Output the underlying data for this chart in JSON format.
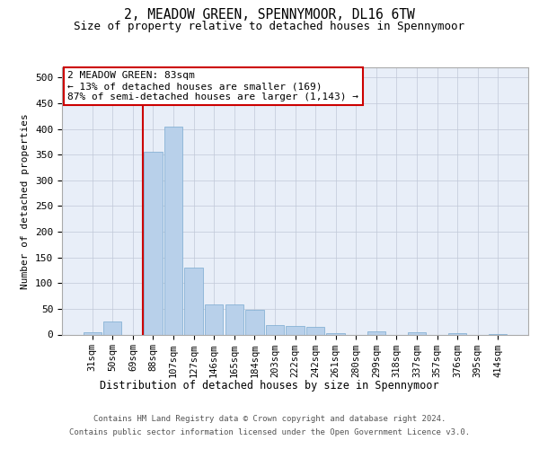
{
  "title": "2, MEADOW GREEN, SPENNYMOOR, DL16 6TW",
  "subtitle": "Size of property relative to detached houses in Spennymoor",
  "xlabel": "Distribution of detached houses by size in Spennymoor",
  "ylabel": "Number of detached properties",
  "bar_color": "#b8d0ea",
  "bar_edge_color": "#7aaacf",
  "background_color": "#e8eef8",
  "grid_color": "#c0c8d8",
  "categories": [
    "31sqm",
    "50sqm",
    "69sqm",
    "88sqm",
    "107sqm",
    "127sqm",
    "146sqm",
    "165sqm",
    "184sqm",
    "203sqm",
    "222sqm",
    "242sqm",
    "261sqm",
    "280sqm",
    "299sqm",
    "318sqm",
    "337sqm",
    "357sqm",
    "376sqm",
    "395sqm",
    "414sqm"
  ],
  "values": [
    5,
    25,
    0,
    355,
    405,
    130,
    58,
    58,
    48,
    18,
    16,
    14,
    2,
    0,
    6,
    0,
    5,
    0,
    2,
    0,
    1
  ],
  "ylim": [
    0,
    520
  ],
  "yticks": [
    0,
    50,
    100,
    150,
    200,
    250,
    300,
    350,
    400,
    450,
    500
  ],
  "vline_pos": 2.5,
  "vline_color": "#cc0000",
  "annotation_text": "2 MEADOW GREEN: 83sqm\n← 13% of detached houses are smaller (169)\n87% of semi-detached houses are larger (1,143) →",
  "annotation_box_color": "#ffffff",
  "annotation_box_edge": "#cc0000",
  "footnote_line1": "Contains HM Land Registry data © Crown copyright and database right 2024.",
  "footnote_line2": "Contains public sector information licensed under the Open Government Licence v3.0."
}
